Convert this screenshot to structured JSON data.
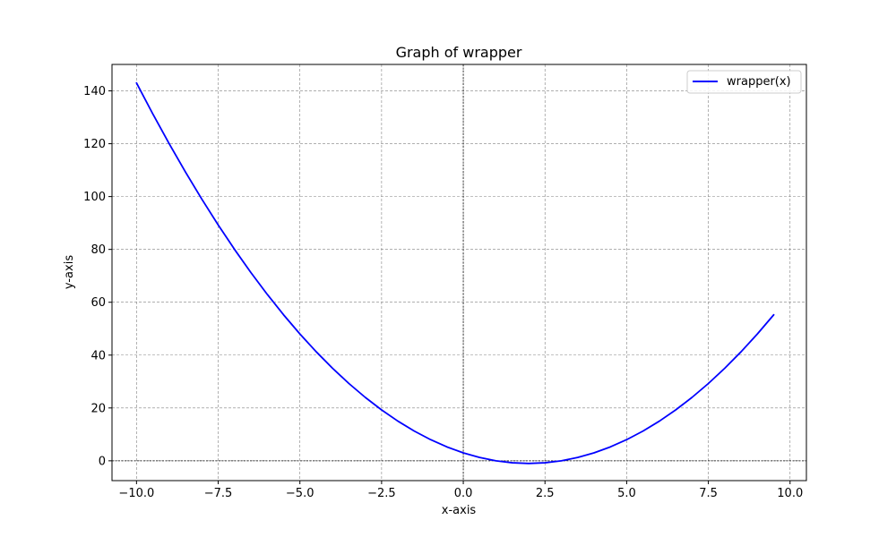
{
  "chart_data": {
    "type": "line",
    "title": "Graph of wrapper",
    "xlabel": "x-axis",
    "ylabel": "y-axis",
    "xlim": [
      -10.75,
      10.5
    ],
    "ylim": [
      -7.5,
      150
    ],
    "xticks": [
      -10.0,
      -7.5,
      -5.0,
      -2.5,
      0.0,
      2.5,
      5.0,
      7.5,
      10.0
    ],
    "xtick_labels": [
      "−10.0",
      "−7.5",
      "−5.0",
      "−2.5",
      "0.0",
      "2.5",
      "5.0",
      "7.5",
      "10.0"
    ],
    "yticks": [
      0,
      20,
      40,
      60,
      80,
      100,
      120,
      140
    ],
    "ytick_labels": [
      "0",
      "20",
      "40",
      "60",
      "80",
      "100",
      "120",
      "140"
    ],
    "grid": true,
    "legend": "top-right",
    "reference_lines": {
      "x": 0,
      "y": 0
    },
    "series": [
      {
        "name": "wrapper(x)",
        "color": "#0000ff",
        "x": [
          -10.0,
          -9.5,
          -9.0,
          -8.5,
          -8.0,
          -7.5,
          -7.0,
          -6.5,
          -6.0,
          -5.5,
          -5.0,
          -4.5,
          -4.0,
          -3.5,
          -3.0,
          -2.5,
          -2.0,
          -1.5,
          -1.0,
          -0.5,
          0.0,
          0.5,
          1.0,
          1.5,
          2.0,
          2.5,
          3.0,
          3.5,
          4.0,
          4.5,
          5.0,
          5.5,
          6.0,
          6.5,
          7.0,
          7.5,
          8.0,
          8.5,
          9.0,
          9.5
        ],
        "y": [
          143.0,
          131.25,
          120.0,
          109.25,
          99.0,
          89.25,
          80.0,
          71.25,
          63.0,
          55.25,
          48.0,
          41.25,
          35.0,
          29.25,
          24.0,
          19.25,
          15.0,
          11.25,
          8.0,
          5.25,
          3.0,
          1.25,
          0.0,
          -0.75,
          -1.0,
          -0.75,
          0.0,
          1.25,
          3.0,
          5.25,
          8.0,
          11.25,
          15.0,
          19.25,
          24.0,
          29.25,
          35.0,
          41.25,
          48.0,
          55.25
        ]
      }
    ]
  }
}
